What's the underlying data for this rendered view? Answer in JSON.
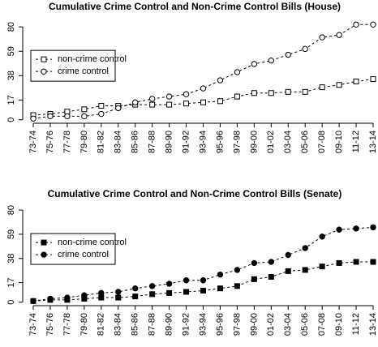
{
  "chart_data": [
    {
      "type": "line",
      "title": "Cumulative Crime Control and Non-Crime Control Bills (House)",
      "categories": [
        "73-74",
        "75-76",
        "77-78",
        "79-80",
        "81-82",
        "83-84",
        "85-86",
        "87-88",
        "89-90",
        "91-92",
        "93-94",
        "95-96",
        "97-98",
        "99-00",
        "01-02",
        "03-04",
        "05-06",
        "07-08",
        "09-10",
        "11-12",
        "13-14"
      ],
      "series": [
        {
          "name": "non-crime control",
          "color": "#000000",
          "marker": "square",
          "filled": false,
          "values": [
            4,
            5,
            7,
            9,
            12,
            12,
            13,
            13,
            13,
            14,
            15,
            16,
            20,
            23,
            23,
            24,
            24,
            28,
            30,
            33,
            35
          ]
        },
        {
          "name": "crime control",
          "color": "#000000",
          "marker": "circle",
          "filled": false,
          "values": [
            1,
            3,
            3,
            3,
            5,
            10,
            15,
            18,
            20,
            22,
            27,
            34,
            41,
            48,
            51,
            56,
            61,
            71,
            73,
            82,
            82
          ]
        }
      ],
      "ylim": [
        -3,
        85
      ],
      "yticks": [
        0,
        17,
        38,
        59,
        80
      ],
      "legend": "left",
      "line_style": "dashed"
    },
    {
      "type": "line",
      "title": "Cumulative Crime Control and Non-Crime Control Bills (Senate)",
      "categories": [
        "73-74",
        "75-76",
        "77-78",
        "79-80",
        "81-82",
        "83-84",
        "85-86",
        "87-88",
        "89-90",
        "91-92",
        "93-94",
        "95-96",
        "97-98",
        "99-00",
        "01-02",
        "03-04",
        "05-06",
        "07-08",
        "09-10",
        "11-12",
        "13-14"
      ],
      "series": [
        {
          "name": "non-crime control",
          "color": "#000000",
          "marker": "square",
          "filled": true,
          "values": [
            1,
            2,
            2,
            3,
            4,
            4,
            5,
            7,
            8,
            9,
            10,
            12,
            14,
            20,
            22,
            27,
            28,
            31,
            34,
            35,
            35
          ]
        },
        {
          "name": "crime control",
          "color": "#000000",
          "marker": "circle",
          "filled": true,
          "values": [
            1,
            3,
            4,
            6,
            8,
            9,
            12,
            14,
            16,
            19,
            19,
            24,
            28,
            34,
            35,
            41,
            47,
            57,
            63,
            64,
            65
          ]
        }
      ],
      "ylim": [
        -3,
        85
      ],
      "yticks": [
        0,
        17,
        38,
        59,
        80
      ],
      "legend": "left",
      "line_style": "dashed"
    }
  ]
}
